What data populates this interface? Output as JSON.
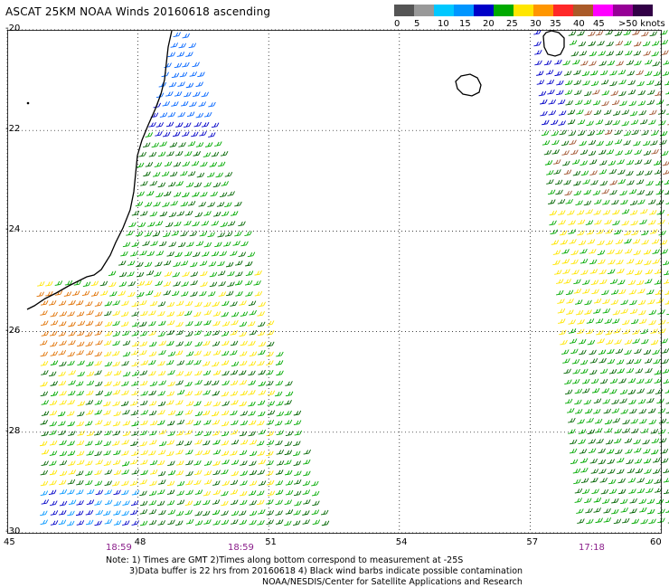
{
  "title": "ASCAT 25KM NOAA Winds 20160618 ascending",
  "legend": {
    "ticks": [
      "0",
      "5",
      "10",
      "15",
      "20",
      "25",
      "30",
      "35",
      "40",
      "45",
      ">50 knots"
    ],
    "colors": [
      "#555555",
      "#999999",
      "#00c8ff",
      "#0096ff",
      "#0000c8",
      "#00aa00",
      "#ffe600",
      "#ff9600",
      "#ff2828",
      "#aa5a28",
      "#ff00ff",
      "#960096",
      "#320046"
    ]
  },
  "axes": {
    "lat_labels": [
      "-20",
      "-22",
      "-24",
      "-26",
      "-28",
      "-30"
    ],
    "lon_labels": [
      "45",
      "48",
      "51",
      "54",
      "57",
      "60"
    ],
    "lat_range": [
      -30,
      -20
    ],
    "lon_range": [
      45,
      60
    ],
    "grid": "dotted"
  },
  "pass_times": [
    "18:59",
    "18:59",
    "17:18"
  ],
  "notes": [
    "Note: 1) Times are GMT 2)Times along bottom correspond to measurement at -25S",
    "3)Data buffer is 22 hrs from 20160618 4) Black wind barbs indicate possible contamination",
    "NOAA/NESDIS/Center for Satellite Applications and Research"
  ],
  "map_features": [
    "madagascar-coastline",
    "reunion-island",
    "mauritius-island",
    "left-swath-wind-barbs",
    "right-swath-wind-barbs"
  ]
}
